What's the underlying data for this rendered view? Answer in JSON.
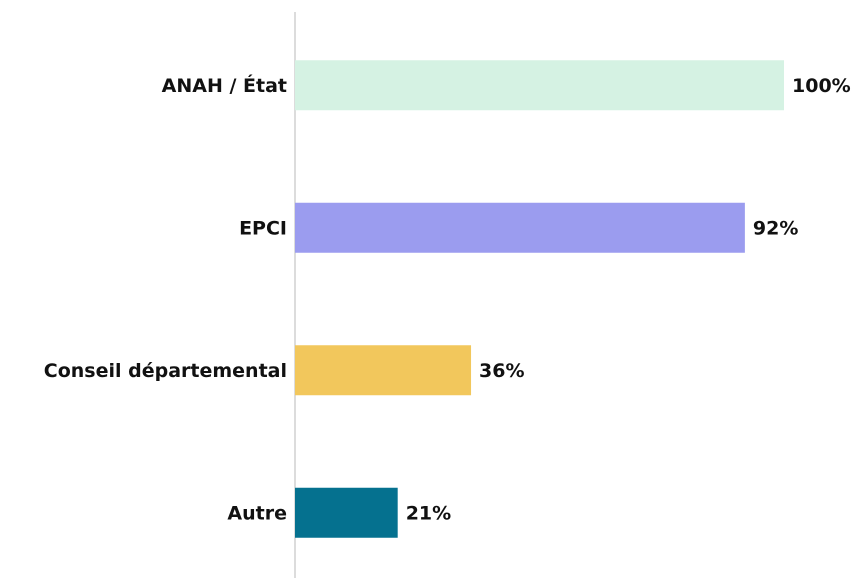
{
  "chart_data": {
    "type": "bar",
    "orientation": "horizontal",
    "categories": [
      "ANAH / État",
      "EPCI",
      "Conseil départemental",
      "Autre"
    ],
    "values": [
      100,
      92,
      36,
      21
    ],
    "value_labels": [
      "100%",
      "92%",
      "36%",
      "21%"
    ],
    "colors": [
      "#d5f2e3",
      "#9b9cef",
      "#f2c75c",
      "#05718f"
    ]
  }
}
